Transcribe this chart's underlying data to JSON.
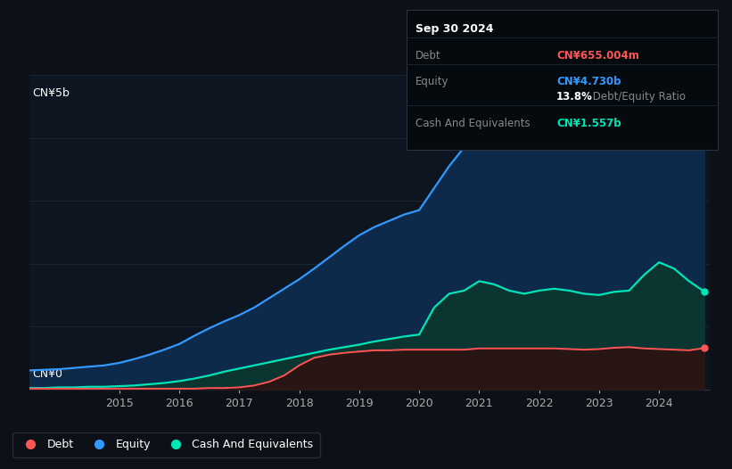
{
  "background_color": "#0d1117",
  "plot_bg_color": "#0d1520",
  "grid_color": "#1a2535",
  "years": [
    2013.5,
    2013.75,
    2014.0,
    2014.25,
    2014.5,
    2014.75,
    2015.0,
    2015.25,
    2015.5,
    2015.75,
    2016.0,
    2016.25,
    2016.5,
    2016.75,
    2017.0,
    2017.25,
    2017.5,
    2017.75,
    2018.0,
    2018.25,
    2018.5,
    2018.75,
    2019.0,
    2019.25,
    2019.5,
    2019.75,
    2020.0,
    2020.25,
    2020.5,
    2020.75,
    2021.0,
    2021.25,
    2021.5,
    2021.75,
    2022.0,
    2022.25,
    2022.5,
    2022.75,
    2023.0,
    2023.25,
    2023.5,
    2023.75,
    2024.0,
    2024.25,
    2024.5,
    2024.75
  ],
  "equity": [
    0.3,
    0.31,
    0.32,
    0.34,
    0.36,
    0.38,
    0.42,
    0.48,
    0.55,
    0.63,
    0.72,
    0.85,
    0.97,
    1.08,
    1.18,
    1.3,
    1.45,
    1.6,
    1.75,
    1.92,
    2.1,
    2.28,
    2.45,
    2.58,
    2.68,
    2.78,
    2.85,
    3.2,
    3.55,
    3.85,
    4.55,
    4.72,
    4.76,
    4.8,
    4.85,
    4.82,
    4.78,
    4.8,
    4.82,
    4.8,
    4.78,
    4.76,
    4.8,
    4.76,
    4.73,
    4.73
  ],
  "debt": [
    0.01,
    0.01,
    0.01,
    0.01,
    0.01,
    0.01,
    0.01,
    0.01,
    0.01,
    0.01,
    0.01,
    0.01,
    0.02,
    0.02,
    0.03,
    0.06,
    0.12,
    0.22,
    0.38,
    0.5,
    0.55,
    0.58,
    0.6,
    0.62,
    0.62,
    0.63,
    0.63,
    0.63,
    0.63,
    0.63,
    0.65,
    0.65,
    0.65,
    0.65,
    0.65,
    0.65,
    0.64,
    0.63,
    0.64,
    0.66,
    0.67,
    0.65,
    0.64,
    0.63,
    0.62,
    0.655
  ],
  "cash": [
    0.02,
    0.02,
    0.03,
    0.03,
    0.04,
    0.04,
    0.05,
    0.06,
    0.08,
    0.1,
    0.13,
    0.17,
    0.22,
    0.28,
    0.33,
    0.38,
    0.43,
    0.48,
    0.53,
    0.58,
    0.63,
    0.67,
    0.71,
    0.76,
    0.8,
    0.84,
    0.87,
    1.3,
    1.52,
    1.57,
    1.72,
    1.67,
    1.57,
    1.52,
    1.57,
    1.6,
    1.57,
    1.52,
    1.5,
    1.55,
    1.57,
    1.82,
    2.02,
    1.92,
    1.72,
    1.557
  ],
  "equity_color": "#3399ff",
  "debt_color": "#ff5555",
  "cash_color": "#00e5b8",
  "equity_fill": "#0d2a4a",
  "cash_fill": "#0a3530",
  "debt_fill": "#2a1515",
  "x_ticks": [
    2015,
    2016,
    2017,
    2018,
    2019,
    2020,
    2021,
    2022,
    2023,
    2024
  ],
  "x_tick_labels": [
    "2015",
    "2016",
    "2017",
    "2018",
    "2019",
    "2020",
    "2021",
    "2022",
    "2023",
    "2024"
  ],
  "ylim": [
    0,
    5.0
  ],
  "y_label_top": "CN¥5b",
  "y_label_bottom": "CN¥0",
  "legend_labels": [
    "Debt",
    "Equity",
    "Cash And Equivalents"
  ],
  "legend_colors": [
    "#ff5555",
    "#3399ff",
    "#00e5b8"
  ],
  "tooltip": {
    "title": "Sep 30 2024",
    "rows": [
      {
        "label": "Debt",
        "value": "CN¥655.004m",
        "value_color": "#ff5555",
        "label_color": "#888888"
      },
      {
        "label": "Equity",
        "value": "CN¥4.730b",
        "value_color": "#3399ff",
        "label_color": "#888888"
      },
      {
        "label": "",
        "value": "13.8%",
        "value_color": "#ffffff",
        "label_color": "#888888",
        "suffix": " Debt/Equity Ratio"
      },
      {
        "label": "Cash And Equivalents",
        "value": "CN¥1.557b",
        "value_color": "#00e5b8",
        "label_color": "#888888"
      }
    ]
  }
}
